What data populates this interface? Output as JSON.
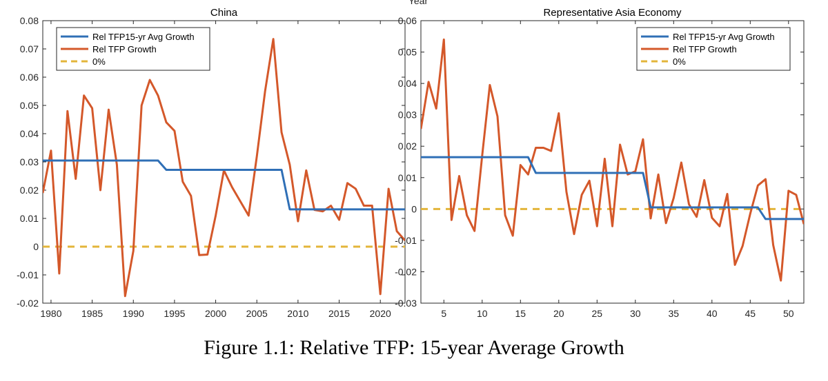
{
  "figure_caption": "Figure 1.1: Relative TFP: 15-year Average Growth",
  "top_label": "Year",
  "colors": {
    "avg": "#2f6fb6",
    "growth": "#d4582a",
    "zero": "#e3b53a",
    "axis": "#262626"
  },
  "chart_data": [
    {
      "type": "line",
      "title": "China",
      "xlim": [
        1979,
        2023
      ],
      "ylim": [
        -0.02,
        0.08
      ],
      "xticks": [
        1980,
        1985,
        1990,
        1995,
        2000,
        2005,
        2010,
        2015,
        2020
      ],
      "xtick_labels": [
        "1980",
        "1985",
        "1990",
        "1995",
        "2000",
        "2005",
        "2010",
        "2015",
        "2020"
      ],
      "yticks": [
        -0.02,
        -0.01,
        0,
        0.01,
        0.02,
        0.03,
        0.04,
        0.05,
        0.06,
        0.07,
        0.08
      ],
      "ytick_labels": [
        "-0.02",
        "-0.01",
        "0",
        "0.01",
        "0.02",
        "0.03",
        "0.04",
        "0.05",
        "0.06",
        "0.07",
        "0.08"
      ],
      "legend": [
        "Rel TFP15-yr Avg Growth",
        "Rel TFP Growth",
        "0%"
      ],
      "legend_position": "top-left",
      "series": [
        {
          "name": "Rel TFP15-yr Avg Growth",
          "x": [
            1979,
            1993,
            1994,
            2008,
            2009,
            2023
          ],
          "y": [
            0.0305,
            0.0305,
            0.0272,
            0.0272,
            0.0132,
            0.0132
          ]
        },
        {
          "name": "Rel TFP Growth",
          "x": [
            1979,
            1980,
            1981,
            1982,
            1983,
            1984,
            1985,
            1986,
            1987,
            1988,
            1989,
            1990,
            1991,
            1992,
            1993,
            1994,
            1995,
            1996,
            1997,
            1998,
            1999,
            2000,
            2001,
            2002,
            2003,
            2004,
            2005,
            2006,
            2007,
            2008,
            2009,
            2010,
            2011,
            2012,
            2013,
            2014,
            2015,
            2016,
            2017,
            2018,
            2019,
            2020,
            2021,
            2022,
            2023
          ],
          "y": [
            0.019,
            0.034,
            -0.0095,
            0.048,
            0.024,
            0.0535,
            0.049,
            0.02,
            0.0485,
            0.029,
            -0.0175,
            -0.0015,
            0.05,
            0.059,
            0.0535,
            0.044,
            0.041,
            0.023,
            0.018,
            -0.003,
            -0.0028,
            0.011,
            0.027,
            0.021,
            0.016,
            0.011,
            0.032,
            0.055,
            0.0735,
            0.0405,
            0.029,
            0.009,
            0.027,
            0.013,
            0.0125,
            0.0145,
            0.0095,
            0.0225,
            0.0205,
            0.0145,
            0.0145,
            -0.0168,
            0.0205,
            0.0055,
            0.0022
          ]
        },
        {
          "name": "0%",
          "x": [
            1979,
            2023
          ],
          "y": [
            0,
            0
          ]
        }
      ]
    },
    {
      "type": "line",
      "title": "Representative Asia Economy",
      "xlim": [
        2,
        52
      ],
      "ylim": [
        -0.03,
        0.06
      ],
      "xticks": [
        5,
        10,
        15,
        20,
        25,
        30,
        35,
        40,
        45,
        50
      ],
      "xtick_labels": [
        "5",
        "10",
        "15",
        "20",
        "25",
        "30",
        "35",
        "40",
        "45",
        "50"
      ],
      "yticks": [
        -0.03,
        -0.02,
        -0.01,
        0,
        0.01,
        0.02,
        0.03,
        0.04,
        0.05,
        0.06
      ],
      "ytick_labels": [
        "-0.03",
        "-0.02",
        "-0.01",
        "0",
        "0.01",
        "0.02",
        "0.03",
        "0.04",
        "0.05",
        "0.06"
      ],
      "legend": [
        "Rel TFP15-yr Avg Growth",
        "Rel TFP Growth",
        "0%"
      ],
      "legend_position": "top-right",
      "series": [
        {
          "name": "Rel TFP15-yr Avg Growth",
          "x": [
            2,
            16,
            17,
            31,
            32,
            46,
            47,
            52
          ],
          "y": [
            0.0165,
            0.0165,
            0.0115,
            0.0115,
            0.0005,
            0.0005,
            -0.0032,
            -0.0032
          ]
        },
        {
          "name": "Rel TFP Growth",
          "x": [
            2,
            3,
            4,
            5,
            6,
            7,
            8,
            9,
            10,
            11,
            12,
            13,
            14,
            15,
            16,
            17,
            18,
            19,
            20,
            21,
            22,
            23,
            24,
            25,
            26,
            27,
            28,
            29,
            30,
            31,
            32,
            33,
            34,
            35,
            36,
            37,
            38,
            39,
            40,
            41,
            42,
            43,
            44,
            45,
            46,
            47,
            48,
            49,
            50,
            51,
            52
          ],
          "y": [
            0.0255,
            0.0405,
            0.032,
            0.054,
            -0.0035,
            0.0105,
            -0.002,
            -0.007,
            0.017,
            0.0395,
            0.0295,
            -0.002,
            -0.0085,
            0.014,
            0.011,
            0.0195,
            0.0195,
            0.0185,
            0.0305,
            0.0055,
            -0.008,
            0.0045,
            0.009,
            -0.0055,
            0.016,
            -0.0055,
            0.0205,
            0.011,
            0.012,
            0.0222,
            -0.003,
            0.011,
            -0.0045,
            0.0035,
            0.0148,
            0.0015,
            -0.0025,
            0.0092,
            -0.0028,
            -0.0055,
            0.0048,
            -0.0178,
            -0.0118,
            -0.0015,
            0.0075,
            0.0095,
            -0.0115,
            -0.0228,
            0.0058,
            0.0045,
            -0.0048
          ]
        },
        {
          "name": "0%",
          "x": [
            2,
            52
          ],
          "y": [
            0,
            0
          ]
        }
      ]
    }
  ]
}
